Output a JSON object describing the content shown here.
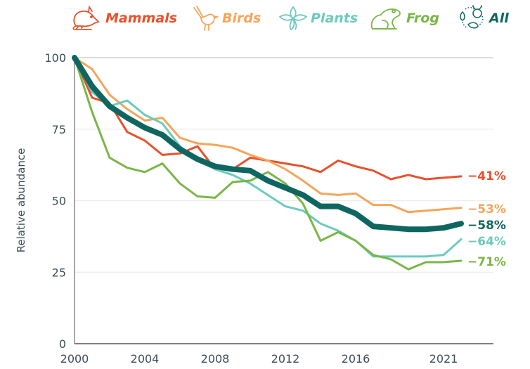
{
  "legend": [
    {
      "key": "mammals",
      "label": "Mammals",
      "icon": "mammal-icon",
      "color": "#e8512b"
    },
    {
      "key": "birds",
      "label": "Birds",
      "icon": "bird-icon",
      "color": "#f5a55a"
    },
    {
      "key": "plants",
      "label": "Plants",
      "icon": "flower-icon",
      "color": "#6ccbbd"
    },
    {
      "key": "frog",
      "label": "Frog",
      "icon": "frog-icon",
      "color": "#7ab648"
    },
    {
      "key": "all",
      "label": "All",
      "icon": "all-species-icon",
      "color": "#0f6660"
    }
  ],
  "chart_data": {
    "type": "line",
    "title": "",
    "xlabel": "",
    "ylabel": "Relative abundance",
    "ylim": [
      0,
      100
    ],
    "xlim": [
      2000,
      2025
    ],
    "yticks": [
      0,
      25,
      50,
      75,
      100
    ],
    "xticks": [
      2000,
      2004,
      2008,
      2012,
      2016,
      2021
    ],
    "grid": "horizontal",
    "legend_position": "top",
    "x": [
      2000,
      2001,
      2002,
      2003,
      2004,
      2005,
      2006,
      2007,
      2008,
      2009,
      2010,
      2011,
      2012,
      2013,
      2014,
      2015,
      2016,
      2017,
      2018,
      2019,
      2020,
      2021,
      2022
    ],
    "series": [
      {
        "name": "Mammals",
        "key": "mammals",
        "color": "#e8512b",
        "end_label": "−41%",
        "values": [
          100,
          86,
          84,
          74,
          71,
          66,
          66.5,
          69,
          61,
          61,
          65,
          64,
          63,
          62,
          60,
          64,
          62,
          60.5,
          57.5,
          59,
          57.5,
          58,
          58.5
        ]
      },
      {
        "name": "Birds",
        "key": "birds",
        "color": "#f5a55a",
        "end_label": "−53%",
        "values": [
          100,
          96,
          87,
          82,
          78,
          79,
          72,
          70,
          69.5,
          68.5,
          66,
          64,
          61,
          57,
          52.5,
          52,
          52.5,
          48.5,
          48.5,
          46,
          46.5,
          47,
          47.5
        ]
      },
      {
        "name": "Plants",
        "key": "plants",
        "color": "#6ccbbd",
        "end_label": "−64%",
        "values": [
          100,
          88,
          83,
          85,
          80,
          77,
          69,
          64,
          61,
          59,
          56,
          52,
          48,
          46.5,
          42,
          39.5,
          36,
          30.5,
          30.5,
          30.5,
          30.5,
          31,
          36.5
        ]
      },
      {
        "name": "Frog",
        "key": "frog",
        "color": "#7ab648",
        "end_label": "−71%",
        "values": [
          100,
          81,
          65,
          61.5,
          60,
          63,
          56,
          51.5,
          51,
          56.5,
          57,
          60,
          56,
          49,
          36,
          39,
          36,
          31,
          29.5,
          26,
          28.5,
          28.5,
          29
        ]
      },
      {
        "name": "All",
        "key": "all",
        "color": "#0f6660",
        "end_label": "−58%",
        "values": [
          100,
          90,
          83,
          79,
          75.5,
          73,
          68,
          64.5,
          62,
          61,
          60.5,
          57,
          54.5,
          52,
          48,
          48,
          45.5,
          41,
          40.5,
          40,
          40,
          40.5,
          42
        ]
      }
    ]
  }
}
